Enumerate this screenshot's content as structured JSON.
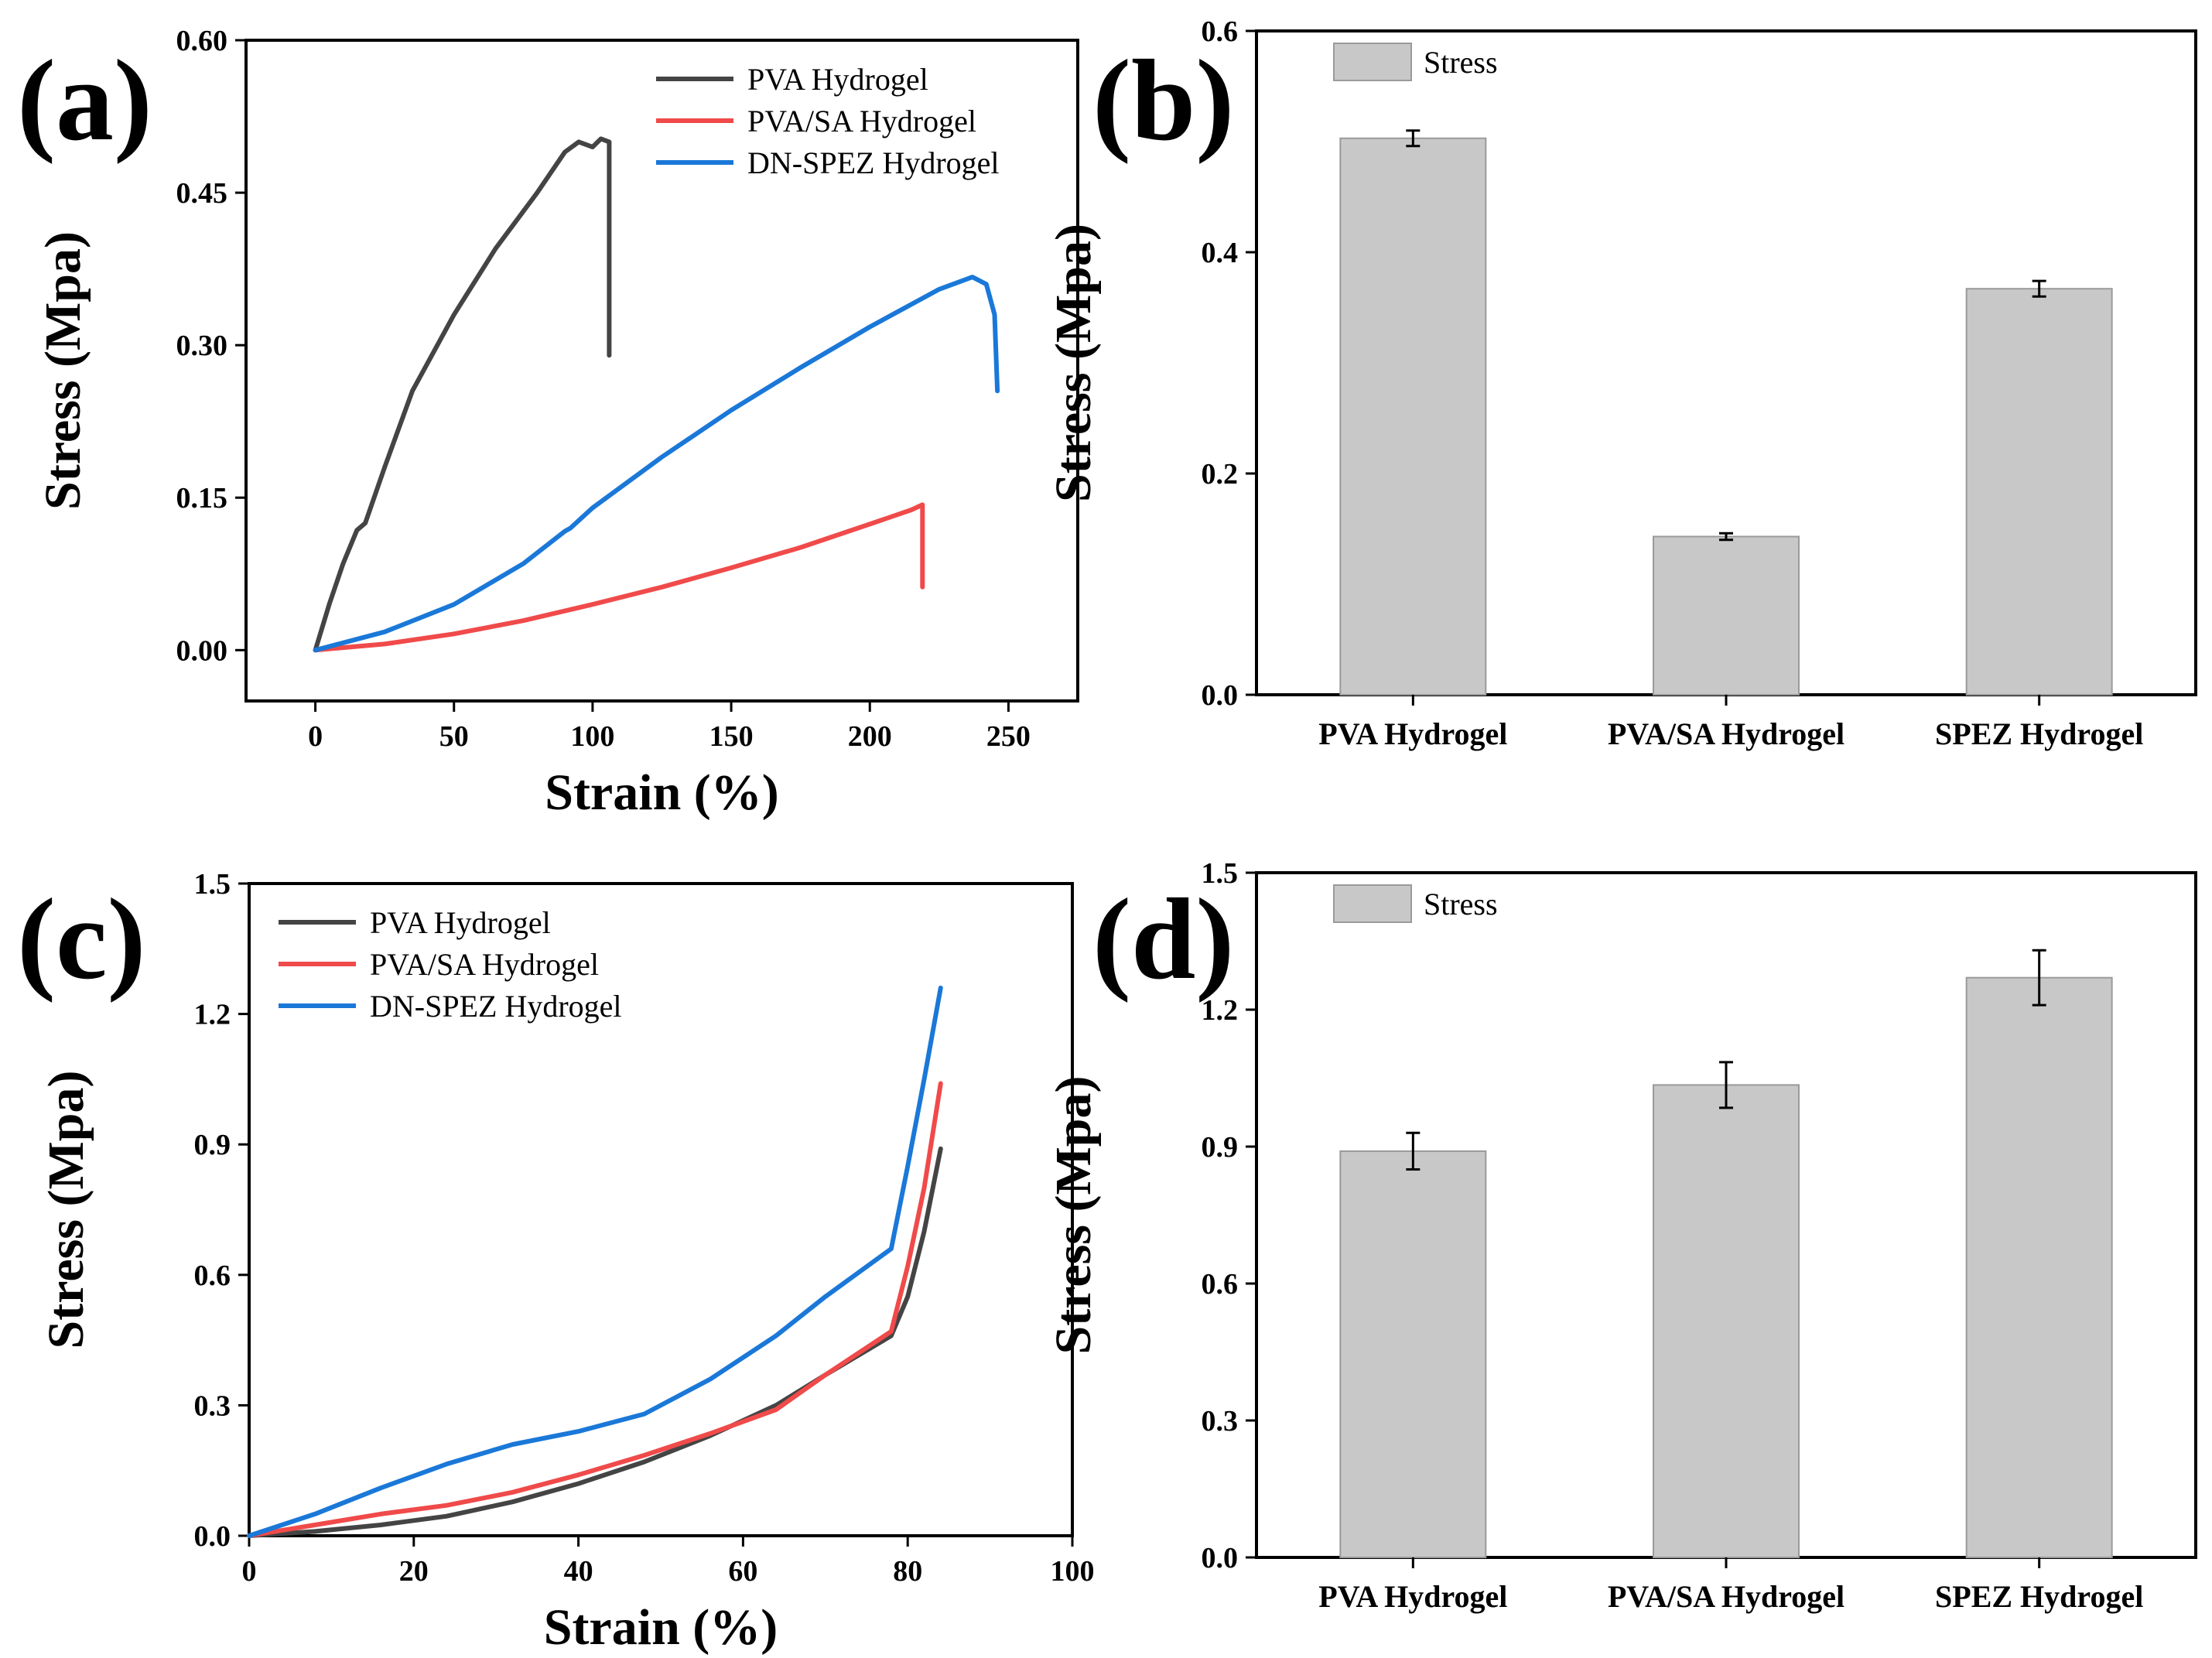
{
  "panels": {
    "a": {
      "letter": "(a)"
    },
    "b": {
      "letter": "(b)"
    },
    "c": {
      "letter": "(c)"
    },
    "d": {
      "letter": "(d)"
    }
  },
  "colors": {
    "PVA": "#444444",
    "PVA/SA": "#f04a4a",
    "DN-SPEZ": "#1a78d8",
    "bar_fill": "#c8c8c8",
    "bar_edge": "#9a9a9a"
  },
  "chart_data": [
    {
      "id": "a",
      "type": "line",
      "xlabel": "Strain (%)",
      "ylabel": "Stress (Mpa)",
      "xlim": [
        -25,
        275
      ],
      "ylim": [
        -0.05,
        0.6
      ],
      "xticks": [
        0,
        50,
        100,
        150,
        200,
        250
      ],
      "yticks": [
        0.0,
        0.15,
        0.3,
        0.45,
        0.6
      ],
      "xtick_labels": [
        "0",
        "50",
        "100",
        "150",
        "200",
        "250"
      ],
      "ytick_labels": [
        "0.00",
        "0.15",
        "0.30",
        "0.45",
        "0.60"
      ],
      "legend_position": "top-right",
      "series": [
        {
          "name": "PVA Hydrogel",
          "key": "PVA",
          "points": [
            [
              0,
              0
            ],
            [
              5,
              0.045
            ],
            [
              10,
              0.085
            ],
            [
              15,
              0.118
            ],
            [
              18,
              0.125
            ],
            [
              25,
              0.18
            ],
            [
              35,
              0.255
            ],
            [
              50,
              0.33
            ],
            [
              65,
              0.395
            ],
            [
              80,
              0.45
            ],
            [
              90,
              0.49
            ],
            [
              95,
              0.5
            ],
            [
              100,
              0.495
            ],
            [
              103,
              0.503
            ],
            [
              106,
              0.5
            ],
            [
              106,
              0.29
            ]
          ]
        },
        {
          "name": "PVA/SA Hydrogel",
          "key": "PVA/SA",
          "points": [
            [
              0,
              0
            ],
            [
              25,
              0.006
            ],
            [
              50,
              0.016
            ],
            [
              75,
              0.029
            ],
            [
              100,
              0.045
            ],
            [
              125,
              0.062
            ],
            [
              150,
              0.081
            ],
            [
              175,
              0.101
            ],
            [
              200,
              0.124
            ],
            [
              215,
              0.138
            ],
            [
              219,
              0.143
            ],
            [
              219,
              0.062
            ]
          ]
        },
        {
          "name": "DN-SPEZ Hydrogel",
          "key": "DN-SPEZ",
          "points": [
            [
              0,
              0
            ],
            [
              25,
              0.018
            ],
            [
              50,
              0.045
            ],
            [
              75,
              0.085
            ],
            [
              90,
              0.117
            ],
            [
              92,
              0.12
            ],
            [
              100,
              0.14
            ],
            [
              125,
              0.19
            ],
            [
              150,
              0.236
            ],
            [
              175,
              0.278
            ],
            [
              200,
              0.318
            ],
            [
              225,
              0.355
            ],
            [
              237,
              0.367
            ],
            [
              242,
              0.36
            ],
            [
              245,
              0.33
            ],
            [
              246,
              0.255
            ]
          ]
        }
      ]
    },
    {
      "id": "b",
      "type": "bar",
      "ylabel": "Stress (Mpa)",
      "ylim": [
        0,
        0.6
      ],
      "yticks": [
        0.0,
        0.2,
        0.4,
        0.6
      ],
      "ytick_labels": [
        "0.0",
        "0.2",
        "0.4",
        "0.6"
      ],
      "categories": [
        "PVA Hydrogel",
        "PVA/SA Hydrogel",
        "SPEZ Hydrogel"
      ],
      "legend_position": "top-left",
      "series": [
        {
          "name": "Stress",
          "values": [
            0.503,
            0.143,
            0.367
          ],
          "errors": [
            0.007,
            0.003,
            0.007
          ]
        }
      ]
    },
    {
      "id": "c",
      "type": "line",
      "xlabel": "Strain (%)",
      "ylabel": "Stress (Mpa)",
      "xlim": [
        0,
        100
      ],
      "ylim": [
        0,
        1.5
      ],
      "xticks": [
        0,
        20,
        40,
        60,
        80,
        100
      ],
      "yticks": [
        0.0,
        0.3,
        0.6,
        0.9,
        1.2,
        1.5
      ],
      "xtick_labels": [
        "0",
        "20",
        "40",
        "60",
        "80",
        "100"
      ],
      "ytick_labels": [
        "0.0",
        "0.3",
        "0.6",
        "0.9",
        "1.2",
        "1.5"
      ],
      "legend_position": "top-left",
      "series": [
        {
          "name": "PVA Hydrogel",
          "key": "PVA",
          "points": [
            [
              0,
              0
            ],
            [
              8,
              0.01
            ],
            [
              16,
              0.025
            ],
            [
              24,
              0.045
            ],
            [
              32,
              0.078
            ],
            [
              40,
              0.12
            ],
            [
              48,
              0.17
            ],
            [
              56,
              0.23
            ],
            [
              64,
              0.3
            ],
            [
              70,
              0.37
            ],
            [
              78,
              0.46
            ],
            [
              80,
              0.55
            ],
            [
              82,
              0.7
            ],
            [
              84,
              0.89
            ]
          ]
        },
        {
          "name": "PVA/SA Hydrogel",
          "key": "PVA/SA",
          "points": [
            [
              0,
              0
            ],
            [
              8,
              0.025
            ],
            [
              16,
              0.05
            ],
            [
              24,
              0.07
            ],
            [
              32,
              0.1
            ],
            [
              40,
              0.14
            ],
            [
              48,
              0.185
            ],
            [
              56,
              0.235
            ],
            [
              64,
              0.29
            ],
            [
              70,
              0.37
            ],
            [
              78,
              0.47
            ],
            [
              80,
              0.62
            ],
            [
              82,
              0.8
            ],
            [
              84,
              1.04
            ]
          ]
        },
        {
          "name": "DN-SPEZ Hydrogel",
          "key": "DN-SPEZ",
          "points": [
            [
              0,
              0
            ],
            [
              8,
              0.05
            ],
            [
              16,
              0.11
            ],
            [
              24,
              0.165
            ],
            [
              32,
              0.21
            ],
            [
              40,
              0.24
            ],
            [
              48,
              0.28
            ],
            [
              56,
              0.36
            ],
            [
              64,
              0.46
            ],
            [
              70,
              0.55
            ],
            [
              78,
              0.66
            ],
            [
              80,
              0.85
            ],
            [
              82,
              1.05
            ],
            [
              84,
              1.26
            ]
          ]
        }
      ]
    },
    {
      "id": "d",
      "type": "bar",
      "ylabel": "Stress (Mpa)",
      "ylim": [
        0,
        1.5
      ],
      "yticks": [
        0.0,
        0.3,
        0.6,
        0.9,
        1.2,
        1.5
      ],
      "ytick_labels": [
        "0.0",
        "0.3",
        "0.6",
        "0.9",
        "1.2",
        "1.5"
      ],
      "categories": [
        "PVA Hydrogel",
        "PVA/SA Hydrogel",
        "SPEZ Hydrogel"
      ],
      "legend_position": "top-left",
      "series": [
        {
          "name": "Stress",
          "values": [
            0.89,
            1.035,
            1.27
          ],
          "errors": [
            0.04,
            0.05,
            0.06
          ]
        }
      ]
    }
  ]
}
